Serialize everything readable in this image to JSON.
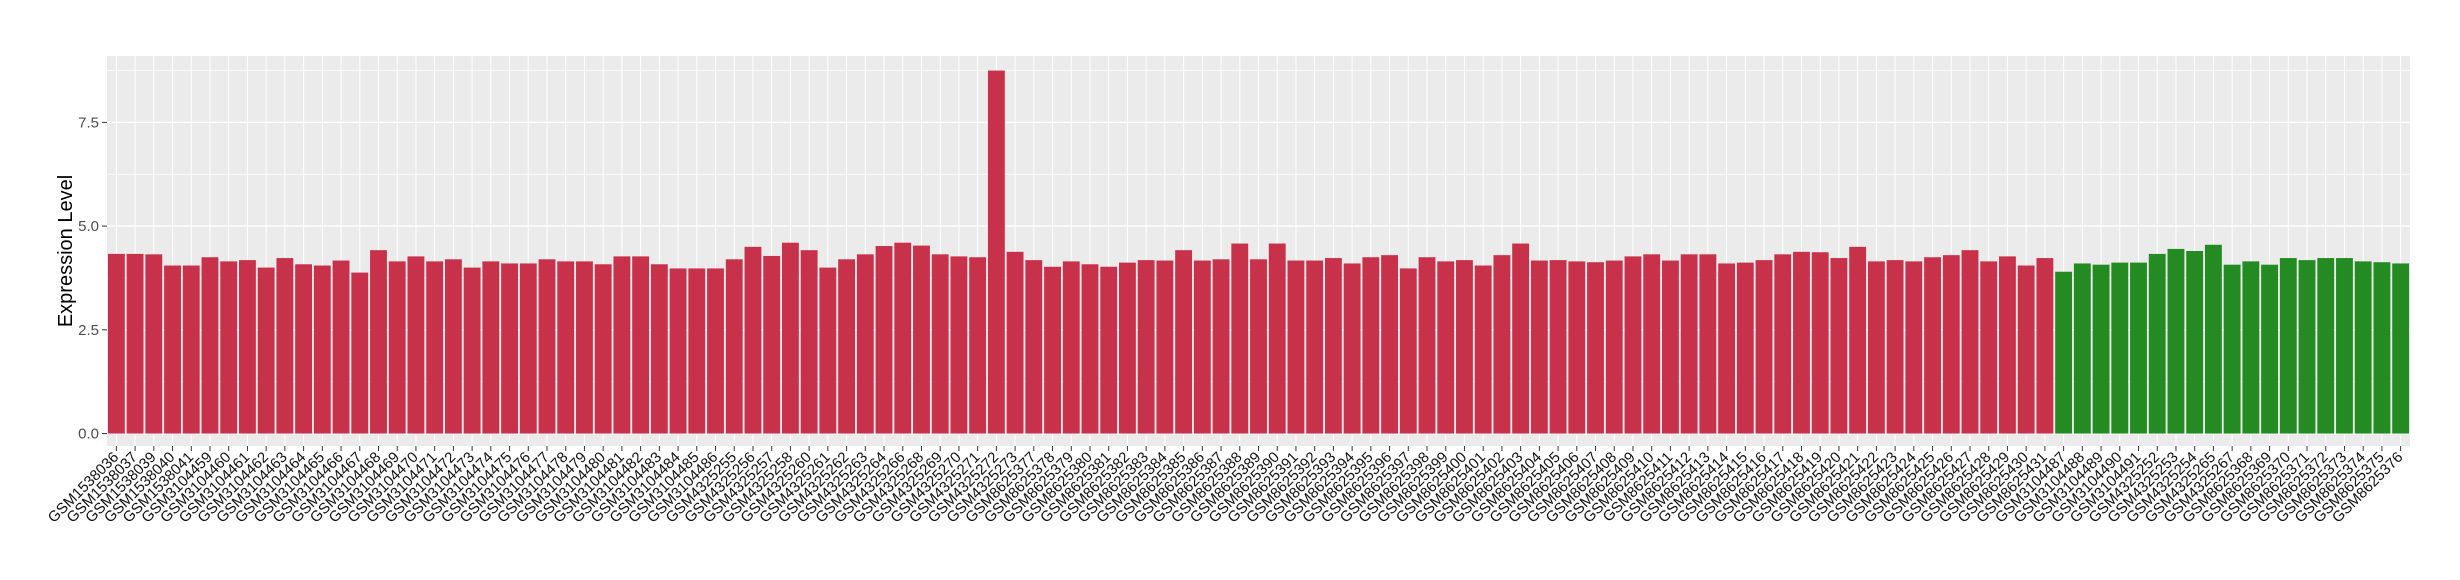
{
  "chart_data": {
    "type": "bar",
    "ylabel": "Expression Level",
    "xlabel": "",
    "ylim": [
      -0.3,
      9.1
    ],
    "yticks": [
      0.0,
      2.5,
      5.0,
      7.5
    ],
    "ytick_labels": [
      "0.0",
      "2.5",
      "5.0",
      "7.5"
    ],
    "grid": true,
    "legend": "none",
    "colors": {
      "group1": "#c8314a",
      "group2": "#238b21",
      "panel": "#ebebeb",
      "gridline": "#ffffff"
    },
    "categories": [
      "GSM1538036",
      "GSM1538037",
      "GSM1538039",
      "GSM1538040",
      "GSM1538041",
      "GSM3104459",
      "GSM3104460",
      "GSM3104461",
      "GSM3104462",
      "GSM3104463",
      "GSM3104464",
      "GSM3104465",
      "GSM3104466",
      "GSM3104467",
      "GSM3104468",
      "GSM3104469",
      "GSM3104470",
      "GSM3104471",
      "GSM3104472",
      "GSM3104473",
      "GSM3104474",
      "GSM3104475",
      "GSM3104476",
      "GSM3104477",
      "GSM3104478",
      "GSM3104479",
      "GSM3104480",
      "GSM3104481",
      "GSM3104482",
      "GSM3104483",
      "GSM3104484",
      "GSM3104485",
      "GSM3104486",
      "GSM4325255",
      "GSM4325256",
      "GSM4325257",
      "GSM4325258",
      "GSM4325260",
      "GSM4325261",
      "GSM4325262",
      "GSM4325263",
      "GSM4325264",
      "GSM4325266",
      "GSM4325268",
      "GSM4325269",
      "GSM4325270",
      "GSM4325271",
      "GSM4325272",
      "GSM4325273",
      "GSM8625377",
      "GSM8625378",
      "GSM8625379",
      "GSM8625380",
      "GSM8625381",
      "GSM8625382",
      "GSM8625383",
      "GSM8625384",
      "GSM8625385",
      "GSM8625386",
      "GSM8625387",
      "GSM8625388",
      "GSM8625389",
      "GSM8625390",
      "GSM8625391",
      "GSM8625392",
      "GSM8625393",
      "GSM8625394",
      "GSM8625395",
      "GSM8625396",
      "GSM8625397",
      "GSM8625398",
      "GSM8625399",
      "GSM8625400",
      "GSM8625401",
      "GSM8625402",
      "GSM8625403",
      "GSM8625404",
      "GSM8625405",
      "GSM8625406",
      "GSM8625407",
      "GSM8625408",
      "GSM8625409",
      "GSM8625410",
      "GSM8625411",
      "GSM8625412",
      "GSM8625413",
      "GSM8625414",
      "GSM8625415",
      "GSM8625416",
      "GSM8625417",
      "GSM8625418",
      "GSM8625419",
      "GSM8625420",
      "GSM8625421",
      "GSM8625422",
      "GSM8625423",
      "GSM8625424",
      "GSM8625425",
      "GSM8625426",
      "GSM8625427",
      "GSM8625428",
      "GSM8625429",
      "GSM8625430",
      "GSM8625431",
      "GSM3104487",
      "GSM3104488",
      "GSM3104489",
      "GSM3104490",
      "GSM3104491",
      "GSM4325252",
      "GSM4325253",
      "GSM4325254",
      "GSM4325265",
      "GSM4325267",
      "GSM8625368",
      "GSM8625369",
      "GSM8625370",
      "GSM8625371",
      "GSM8625372",
      "GSM8625373",
      "GSM8625374",
      "GSM8625375",
      "GSM8625376"
    ],
    "values": [
      4.33,
      4.33,
      4.32,
      4.05,
      4.05,
      4.25,
      4.15,
      4.18,
      4.0,
      4.23,
      4.08,
      4.05,
      4.17,
      3.88,
      4.42,
      4.15,
      4.27,
      4.15,
      4.2,
      4.0,
      4.15,
      4.1,
      4.1,
      4.2,
      4.15,
      4.15,
      4.08,
      4.27,
      4.27,
      4.08,
      3.98,
      3.98,
      3.98,
      4.2,
      4.5,
      4.28,
      4.6,
      4.42,
      4.0,
      4.2,
      4.32,
      4.52,
      4.6,
      4.53,
      4.32,
      4.27,
      4.25,
      8.75,
      4.38,
      4.18,
      4.02,
      4.15,
      4.08,
      4.02,
      4.12,
      4.18,
      4.17,
      4.42,
      4.17,
      4.2,
      4.58,
      4.2,
      4.58,
      4.17,
      4.17,
      4.23,
      4.1,
      4.25,
      4.3,
      3.98,
      4.25,
      4.15,
      4.18,
      4.05,
      4.3,
      4.58,
      4.17,
      4.18,
      4.15,
      4.13,
      4.17,
      4.27,
      4.32,
      4.17,
      4.32,
      4.32,
      4.1,
      4.12,
      4.18,
      4.32,
      4.38,
      4.37,
      4.23,
      4.5,
      4.15,
      4.18,
      4.15,
      4.25,
      4.3,
      4.42,
      4.15,
      4.27,
      4.05,
      4.23,
      3.9,
      4.1,
      4.07,
      4.12,
      4.12,
      4.33,
      4.45,
      4.4,
      4.55,
      4.07,
      4.15,
      4.07,
      4.23,
      4.18,
      4.23,
      4.23,
      4.15,
      4.13,
      4.1
    ],
    "groups": [
      1,
      1,
      1,
      1,
      1,
      1,
      1,
      1,
      1,
      1,
      1,
      1,
      1,
      1,
      1,
      1,
      1,
      1,
      1,
      1,
      1,
      1,
      1,
      1,
      1,
      1,
      1,
      1,
      1,
      1,
      1,
      1,
      1,
      1,
      1,
      1,
      1,
      1,
      1,
      1,
      1,
      1,
      1,
      1,
      1,
      1,
      1,
      1,
      1,
      1,
      1,
      1,
      1,
      1,
      1,
      1,
      1,
      1,
      1,
      1,
      1,
      1,
      1,
      1,
      1,
      1,
      1,
      1,
      1,
      1,
      1,
      1,
      1,
      1,
      1,
      1,
      1,
      1,
      1,
      1,
      1,
      1,
      1,
      1,
      1,
      1,
      1,
      1,
      1,
      1,
      1,
      1,
      1,
      1,
      1,
      1,
      1,
      1,
      1,
      1,
      1,
      1,
      1,
      1,
      2,
      2,
      2,
      2,
      2,
      2,
      2,
      2,
      2,
      2,
      2,
      2,
      2,
      2,
      2,
      2,
      2,
      2,
      2
    ]
  }
}
